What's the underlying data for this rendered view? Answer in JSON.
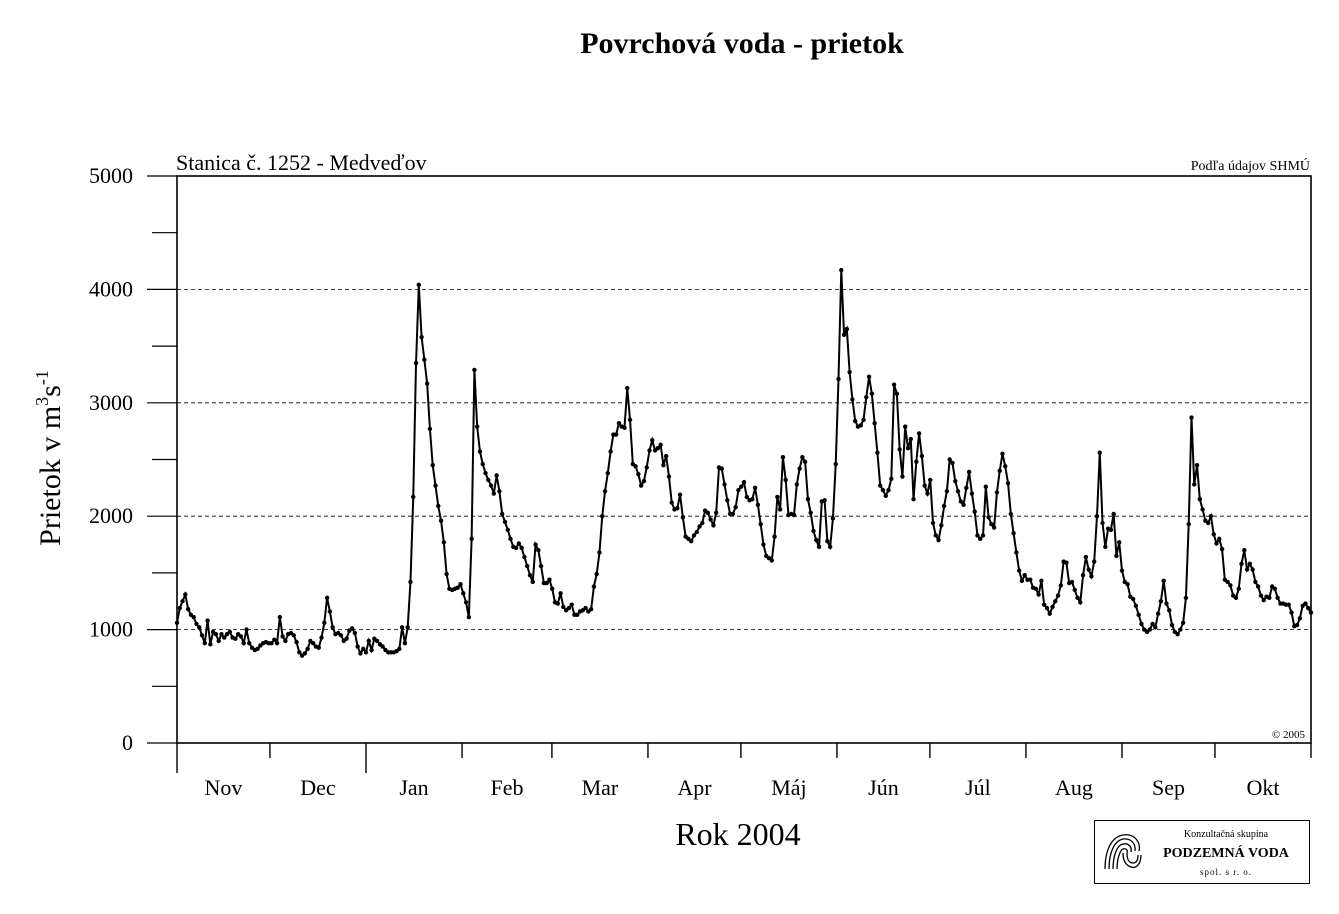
{
  "chart_data": {
    "type": "line",
    "title": "Povrchová voda - prietok",
    "station": "Stanica č. 1252 - Medveďov",
    "source": "Podľa údajov SHMÚ",
    "copyright": "© 2005",
    "xlabel": "Rok 2004",
    "ylabel_main": "Prietok  v  m",
    "ylabel_sup1": "3",
    "ylabel_mid": "s",
    "ylabel_sup2": "-1",
    "ylim": [
      0,
      5000
    ],
    "yticks_major": [
      0,
      1000,
      2000,
      3000,
      4000,
      5000
    ],
    "gridlines": [
      1000,
      2000,
      3000,
      4000
    ],
    "months": [
      "Nov",
      "Dec",
      "Jan",
      "Feb",
      "Mar",
      "Apr",
      "Máj",
      "Jún",
      "Júl",
      "Aug",
      "Sep",
      "Okt"
    ],
    "month_lengths": [
      30,
      31,
      31,
      29,
      31,
      30,
      31,
      30,
      31,
      31,
      30,
      31
    ],
    "series": [
      {
        "values": [
          1060,
          1190,
          1250,
          1310,
          1180,
          1130,
          1110,
          1050,
          1020,
          950,
          880,
          1080,
          870,
          980,
          960,
          900,
          960,
          930,
          960,
          980,
          930,
          920,
          960,
          940,
          880,
          1000,
          880,
          840,
          820,
          830,
          860,
          880,
          890,
          880,
          880,
          910,
          880,
          1110,
          940,
          900,
          960,
          970,
          950,
          890,
          800,
          770,
          790,
          830,
          900,
          880,
          850,
          840,
          930,
          1060,
          1280,
          1160,
          1020,
          960,
          970,
          950,
          900,
          920,
          990,
          1010,
          970,
          850,
          790,
          830,
          800,
          900,
          820,
          920,
          900,
          870,
          850,
          820,
          800,
          800,
          800,
          810,
          830,
          1020,
          880,
          1020,
          1420,
          2170,
          3350,
          4040,
          3580,
          3380,
          3170,
          2770,
          2450,
          2270,
          2090,
          1960,
          1770,
          1490,
          1360,
          1350,
          1360,
          1370,
          1400,
          1320,
          1240,
          1110,
          1800,
          3290,
          2790,
          2570,
          2460,
          2380,
          2320,
          2270,
          2200,
          2360,
          2220,
          2020,
          1950,
          1880,
          1800,
          1730,
          1720,
          1760,
          1720,
          1640,
          1560,
          1480,
          1420,
          1750,
          1700,
          1560,
          1410,
          1410,
          1440,
          1360,
          1240,
          1230,
          1320,
          1200,
          1170,
          1190,
          1220,
          1130,
          1130,
          1160,
          1170,
          1190,
          1160,
          1180,
          1380,
          1490,
          1680,
          2000,
          2220,
          2380,
          2570,
          2720,
          2720,
          2820,
          2790,
          2780,
          3130,
          2850,
          2460,
          2440,
          2370,
          2270,
          2310,
          2430,
          2580,
          2670,
          2580,
          2600,
          2630,
          2450,
          2530,
          2350,
          2120,
          2060,
          2070,
          2190,
          1990,
          1820,
          1800,
          1780,
          1830,
          1860,
          1910,
          1940,
          2050,
          2030,
          1970,
          1920,
          2030,
          2430,
          2420,
          2280,
          2140,
          2020,
          2020,
          2080,
          2230,
          2260,
          2300,
          2170,
          2140,
          2150,
          2250,
          2100,
          1930,
          1750,
          1650,
          1630,
          1610,
          1820,
          2170,
          2060,
          2520,
          2320,
          2010,
          2020,
          2010,
          2280,
          2420,
          2520,
          2480,
          2150,
          2030,
          1870,
          1790,
          1730,
          2130,
          2140,
          1780,
          1730,
          1980,
          2460,
          3210,
          4170,
          3600,
          3650,
          3270,
          3030,
          2840,
          2790,
          2800,
          2850,
          3050,
          3230,
          3080,
          2820,
          2560,
          2270,
          2230,
          2180,
          2230,
          2330,
          3160,
          3080,
          2590,
          2350,
          2790,
          2600,
          2680,
          2150,
          2480,
          2730,
          2530,
          2270,
          2200,
          2320,
          1940,
          1830,
          1790,
          1920,
          2090,
          2220,
          2500,
          2470,
          2310,
          2220,
          2130,
          2100,
          2250,
          2390,
          2200,
          2040,
          1830,
          1800,
          1830,
          2260,
          1990,
          1930,
          1900,
          2210,
          2400,
          2550,
          2440,
          2290,
          2020,
          1850,
          1680,
          1520,
          1430,
          1480,
          1440,
          1440,
          1370,
          1360,
          1310,
          1430,
          1220,
          1190,
          1140,
          1200,
          1250,
          1300,
          1390,
          1600,
          1590,
          1410,
          1420,
          1350,
          1280,
          1240,
          1480,
          1640,
          1530,
          1470,
          1600,
          2000,
          2560,
          1940,
          1730,
          1890,
          1880,
          2020,
          1650,
          1770,
          1520,
          1420,
          1400,
          1290,
          1270,
          1210,
          1130,
          1050,
          1000,
          980,
          1000,
          1050,
          1020,
          1140,
          1250,
          1430,
          1230,
          1170,
          1040,
          980,
          960,
          1000,
          1060,
          1280,
          1930,
          2870,
          2280,
          2450,
          2150,
          2060,
          1960,
          1940,
          2000,
          1840,
          1760,
          1800,
          1710,
          1440,
          1420,
          1390,
          1300,
          1280,
          1360,
          1580,
          1700,
          1530,
          1580,
          1530,
          1420,
          1380,
          1300,
          1260,
          1290,
          1280,
          1380,
          1360,
          1280,
          1230,
          1230,
          1220,
          1220,
          1150,
          1030,
          1040,
          1100,
          1210,
          1230,
          1190,
          1150
        ]
      }
    ]
  },
  "logo": {
    "line1": "Konzultačná skupina",
    "line2": "PODZEMNÁ VODA",
    "line3": "spol. s r. o."
  }
}
